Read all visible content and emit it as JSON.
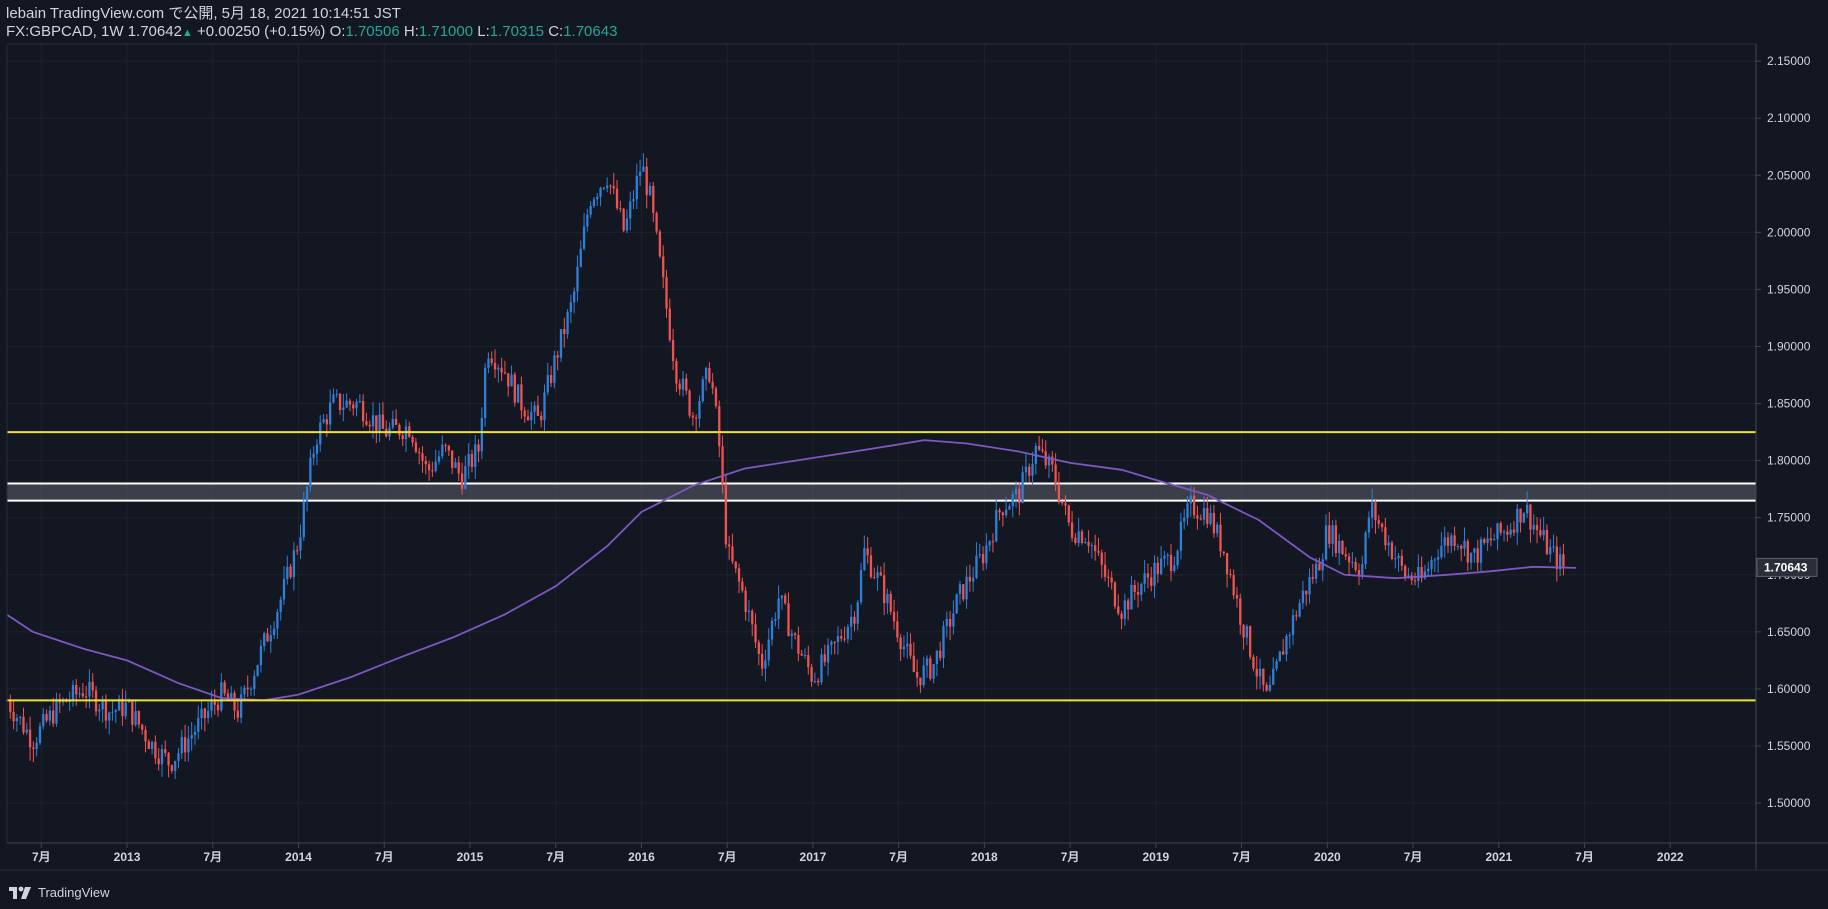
{
  "header": {
    "published": "lebain TradingView.com で公開, 5月 18, 2021 10:14:51 JST",
    "symbol": "FX:GBPCAD, 1W",
    "last": "1.70642",
    "change": "+0.00250 (+0.15%)",
    "o_label": "O:",
    "o_value": "1.70506",
    "h_label": "H:",
    "h_value": "1.71000",
    "l_label": "L:",
    "l_value": "1.70315",
    "c_label": "C:",
    "c_value": "1.70643"
  },
  "footer": {
    "brand": "TradingView"
  },
  "colors": {
    "background": "#131722",
    "up": "#2f7fd6",
    "down": "#ef5350",
    "ma": "#7e57c2",
    "support_resistance": "#f0e130",
    "zone_line": "#ffffff",
    "zone_fill": "#5d606b",
    "grid": "#1e222d",
    "axis_text": "#d1d4dc"
  },
  "chart_data": {
    "type": "candlestick",
    "title": "FX:GBPCAD, 1W",
    "xlabel": "",
    "ylabel": "",
    "time_range": [
      2012.3,
      2022.5
    ],
    "ylim": [
      1.465,
      2.165
    ],
    "y_ticks": [
      "2.15000",
      "2.10000",
      "2.05000",
      "2.00000",
      "1.95000",
      "1.90000",
      "1.85000",
      "1.80000",
      "1.75000",
      "1.70000",
      "1.65000",
      "1.60000",
      "1.55000",
      "1.50000"
    ],
    "y_tick_values": [
      2.15,
      2.1,
      2.05,
      2.0,
      1.95,
      1.9,
      1.85,
      1.8,
      1.75,
      1.7,
      1.65,
      1.6,
      1.55,
      1.5
    ],
    "x_ticks": [
      {
        "t": 2012.5,
        "label": "7月"
      },
      {
        "t": 2013.0,
        "label": "2013"
      },
      {
        "t": 2013.5,
        "label": "7月"
      },
      {
        "t": 2014.0,
        "label": "2014"
      },
      {
        "t": 2014.5,
        "label": "7月"
      },
      {
        "t": 2015.0,
        "label": "2015"
      },
      {
        "t": 2015.5,
        "label": "7月"
      },
      {
        "t": 2016.0,
        "label": "2016"
      },
      {
        "t": 2016.5,
        "label": "7月"
      },
      {
        "t": 2017.0,
        "label": "2017"
      },
      {
        "t": 2017.5,
        "label": "7月"
      },
      {
        "t": 2018.0,
        "label": "2018"
      },
      {
        "t": 2018.5,
        "label": "7月"
      },
      {
        "t": 2019.0,
        "label": "2019"
      },
      {
        "t": 2019.5,
        "label": "7月"
      },
      {
        "t": 2020.0,
        "label": "2020"
      },
      {
        "t": 2020.5,
        "label": "7月"
      },
      {
        "t": 2021.0,
        "label": "2021"
      },
      {
        "t": 2021.5,
        "label": "7月"
      },
      {
        "t": 2022.0,
        "label": "2022"
      }
    ],
    "price_path": [
      [
        2012.3,
        1.59
      ],
      [
        2012.45,
        1.555
      ],
      [
        2012.6,
        1.585
      ],
      [
        2012.75,
        1.6
      ],
      [
        2012.9,
        1.58
      ],
      [
        2013.0,
        1.585
      ],
      [
        2013.15,
        1.55
      ],
      [
        2013.25,
        1.535
      ],
      [
        2013.4,
        1.565
      ],
      [
        2013.55,
        1.595
      ],
      [
        2013.65,
        1.58
      ],
      [
        2013.8,
        1.64
      ],
      [
        2013.9,
        1.68
      ],
      [
        2014.0,
        1.73
      ],
      [
        2014.1,
        1.82
      ],
      [
        2014.2,
        1.85
      ],
      [
        2014.35,
        1.85
      ],
      [
        2014.5,
        1.825
      ],
      [
        2014.65,
        1.83
      ],
      [
        2014.75,
        1.79
      ],
      [
        2014.85,
        1.81
      ],
      [
        2014.95,
        1.785
      ],
      [
        2015.05,
        1.81
      ],
      [
        2015.1,
        1.9
      ],
      [
        2015.2,
        1.88
      ],
      [
        2015.3,
        1.85
      ],
      [
        2015.4,
        1.835
      ],
      [
        2015.5,
        1.89
      ],
      [
        2015.6,
        1.94
      ],
      [
        2015.7,
        2.03
      ],
      [
        2015.8,
        2.05
      ],
      [
        2015.9,
        2.0
      ],
      [
        2016.0,
        2.06
      ],
      [
        2016.05,
        2.03
      ],
      [
        2016.1,
        1.98
      ],
      [
        2016.2,
        1.88
      ],
      [
        2016.3,
        1.84
      ],
      [
        2016.4,
        1.88
      ],
      [
        2016.45,
        1.82
      ],
      [
        2016.5,
        1.72
      ],
      [
        2016.6,
        1.68
      ],
      [
        2016.7,
        1.62
      ],
      [
        2016.8,
        1.68
      ],
      [
        2016.9,
        1.64
      ],
      [
        2017.0,
        1.61
      ],
      [
        2017.1,
        1.63
      ],
      [
        2017.25,
        1.67
      ],
      [
        2017.3,
        1.72
      ],
      [
        2017.4,
        1.69
      ],
      [
        2017.5,
        1.65
      ],
      [
        2017.6,
        1.61
      ],
      [
        2017.7,
        1.62
      ],
      [
        2017.85,
        1.68
      ],
      [
        2018.0,
        1.72
      ],
      [
        2018.1,
        1.76
      ],
      [
        2018.2,
        1.77
      ],
      [
        2018.3,
        1.81
      ],
      [
        2018.4,
        1.79
      ],
      [
        2018.5,
        1.74
      ],
      [
        2018.6,
        1.735
      ],
      [
        2018.7,
        1.7
      ],
      [
        2018.8,
        1.67
      ],
      [
        2018.9,
        1.69
      ],
      [
        2019.0,
        1.705
      ],
      [
        2019.1,
        1.715
      ],
      [
        2019.2,
        1.76
      ],
      [
        2019.3,
        1.755
      ],
      [
        2019.4,
        1.72
      ],
      [
        2019.5,
        1.66
      ],
      [
        2019.6,
        1.61
      ],
      [
        2019.65,
        1.59
      ],
      [
        2019.75,
        1.64
      ],
      [
        2019.85,
        1.68
      ],
      [
        2019.95,
        1.71
      ],
      [
        2020.0,
        1.74
      ],
      [
        2020.1,
        1.72
      ],
      [
        2020.2,
        1.705
      ],
      [
        2020.25,
        1.76
      ],
      [
        2020.35,
        1.73
      ],
      [
        2020.45,
        1.7
      ],
      [
        2020.55,
        1.695
      ],
      [
        2020.65,
        1.725
      ],
      [
        2020.75,
        1.735
      ],
      [
        2020.85,
        1.715
      ],
      [
        2020.95,
        1.73
      ],
      [
        2021.05,
        1.74
      ],
      [
        2021.15,
        1.76
      ],
      [
        2021.2,
        1.745
      ],
      [
        2021.3,
        1.72
      ],
      [
        2021.38,
        1.706
      ]
    ],
    "moving_average": [
      [
        2012.3,
        1.665
      ],
      [
        2012.45,
        1.65
      ],
      [
        2012.75,
        1.635
      ],
      [
        2013.0,
        1.625
      ],
      [
        2013.3,
        1.605
      ],
      [
        2013.55,
        1.592
      ],
      [
        2013.8,
        1.59
      ],
      [
        2014.0,
        1.595
      ],
      [
        2014.3,
        1.61
      ],
      [
        2014.6,
        1.628
      ],
      [
        2014.9,
        1.645
      ],
      [
        2015.2,
        1.665
      ],
      [
        2015.5,
        1.69
      ],
      [
        2015.8,
        1.725
      ],
      [
        2016.0,
        1.755
      ],
      [
        2016.3,
        1.778
      ],
      [
        2016.6,
        1.793
      ],
      [
        2016.9,
        1.8
      ],
      [
        2017.2,
        1.807
      ],
      [
        2017.45,
        1.813
      ],
      [
        2017.65,
        1.818
      ],
      [
        2017.9,
        1.815
      ],
      [
        2018.2,
        1.808
      ],
      [
        2018.5,
        1.798
      ],
      [
        2018.8,
        1.792
      ],
      [
        2019.0,
        1.783
      ],
      [
        2019.3,
        1.77
      ],
      [
        2019.6,
        1.748
      ],
      [
        2019.9,
        1.715
      ],
      [
        2020.1,
        1.7
      ],
      [
        2020.4,
        1.697
      ],
      [
        2020.7,
        1.7
      ],
      [
        2020.95,
        1.703
      ],
      [
        2021.2,
        1.707
      ],
      [
        2021.45,
        1.706
      ]
    ],
    "horizontal_lines": [
      {
        "name": "resistance",
        "value": 1.825,
        "color": "#f0e130"
      },
      {
        "name": "support",
        "value": 1.59,
        "color": "#f0e130"
      }
    ],
    "zone": {
      "top": 1.78,
      "bottom": 1.765
    },
    "last_price_label": "1.70643",
    "last_price_value": 1.70643
  }
}
